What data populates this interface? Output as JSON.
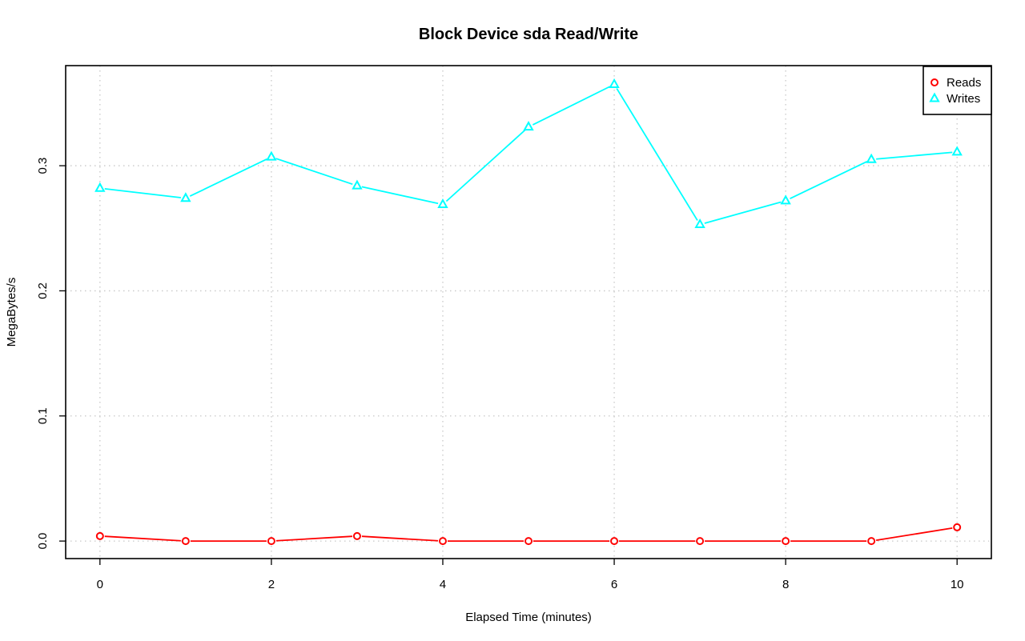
{
  "chart_data": {
    "type": "line",
    "title": "Block Device sda Read/Write",
    "xlabel": "Elapsed Time (minutes)",
    "ylabel": "MegaBytes/s",
    "x": [
      0,
      1,
      2,
      3,
      4,
      5,
      6,
      7,
      8,
      9,
      10
    ],
    "xlim": [
      -0.4,
      10.4
    ],
    "ylim": [
      -0.014,
      0.38
    ],
    "xticks": [
      0,
      2,
      4,
      6,
      8,
      10
    ],
    "xtick_labels": [
      "0",
      "2",
      "4",
      "6",
      "8",
      "10"
    ],
    "yticks": [
      0.0,
      0.1,
      0.2,
      0.3
    ],
    "ytick_labels": [
      "0.0",
      "0.1",
      "0.2",
      "0.3"
    ],
    "grid": true,
    "legend_position": "top-right",
    "series": [
      {
        "name": "Reads",
        "color": "#ff0000",
        "marker": "circle",
        "values": [
          0.004,
          0.0,
          0.0,
          0.004,
          0.0,
          0.0,
          0.0,
          0.0,
          0.0,
          0.0,
          0.011
        ]
      },
      {
        "name": "Writes",
        "color": "#00ffff",
        "marker": "triangle",
        "values": [
          0.282,
          0.274,
          0.307,
          0.284,
          0.269,
          0.331,
          0.365,
          0.253,
          0.272,
          0.305,
          0.311
        ]
      }
    ]
  }
}
